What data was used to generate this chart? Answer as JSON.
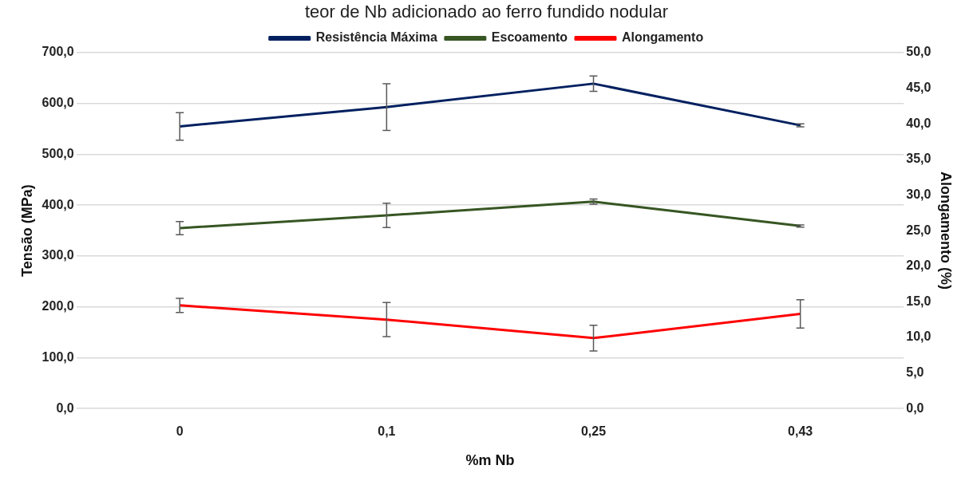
{
  "chart_data": {
    "type": "line",
    "title": "teor de Nb adicionado ao ferro fundido nodular",
    "xlabel": "%m Nb",
    "ylabel": "Tensão (MPa)",
    "y2label": "Alongamento (%)",
    "categories": [
      "0",
      "0,1",
      "0,25",
      "0,43"
    ],
    "series": [
      {
        "name": "Resistência Máxima",
        "color": "#002060",
        "values": [
          555,
          593,
          639,
          557
        ],
        "errors": [
          27,
          46,
          15,
          3
        ]
      },
      {
        "name": "Escoamento",
        "color": "#375623",
        "values": [
          355,
          380,
          407,
          359
        ],
        "errors": [
          13,
          24,
          5,
          2
        ]
      },
      {
        "name": "Alongamento",
        "color": "#ff0000",
        "axis": "y2",
        "values": [
          14.5,
          12.5,
          9.9,
          13.3
        ],
        "errors": [
          1,
          2.4,
          1.8,
          2
        ]
      }
    ],
    "ylim": [
      0,
      700
    ],
    "yticks": [
      {
        "value": 0,
        "label": "0,0"
      },
      {
        "value": 100,
        "label": "100,0"
      },
      {
        "value": 200,
        "label": "200,0"
      },
      {
        "value": 300,
        "label": "300,0"
      },
      {
        "value": 400,
        "label": "400,0"
      },
      {
        "value": 500,
        "label": "500,0"
      },
      {
        "value": 600,
        "label": "600,0"
      },
      {
        "value": 700,
        "label": "700,0"
      }
    ],
    "y2lim": [
      0,
      50
    ],
    "y2ticks": [
      {
        "value": 0,
        "label": "0,0"
      },
      {
        "value": 5,
        "label": "5,0"
      },
      {
        "value": 10,
        "label": "10,0"
      },
      {
        "value": 15,
        "label": "15,0"
      },
      {
        "value": 20,
        "label": "20,0"
      },
      {
        "value": 25,
        "label": "25,0"
      },
      {
        "value": 30,
        "label": "30,0"
      },
      {
        "value": 35,
        "label": "35,0"
      },
      {
        "value": 40,
        "label": "40,0"
      },
      {
        "value": 45,
        "label": "45,0"
      },
      {
        "value": 50,
        "label": "50,0"
      }
    ],
    "grid": "y",
    "legend": "top",
    "line_style": "solid"
  }
}
